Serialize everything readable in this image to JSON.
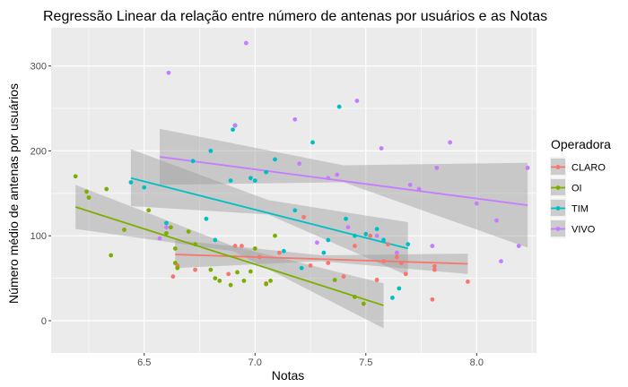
{
  "chart_data": {
    "type": "scatter",
    "title": "Regressão Linear da relação entre número de antenas por usuários e as Notas",
    "xlabel": "Notas",
    "ylabel": "Número médio de antenas por usuários",
    "xlim": [
      6.08,
      8.27
    ],
    "ylim": [
      -38,
      345
    ],
    "x_ticks": [
      6.5,
      7.0,
      7.5,
      8.0
    ],
    "x_tick_labels": [
      "6.5",
      "7.0",
      "7.5",
      "8.0"
    ],
    "y_ticks": [
      0,
      100,
      200,
      300
    ],
    "y_tick_labels": [
      "0",
      "100",
      "200",
      "300"
    ],
    "grid": true,
    "legend_position": "right",
    "legend_title": "Operadora",
    "series": [
      {
        "name": "CLARO",
        "color": "#F8766D",
        "points": [
          [
            6.63,
            52
          ],
          [
            6.65,
            65
          ],
          [
            6.73,
            60
          ],
          [
            6.88,
            55
          ],
          [
            6.91,
            88
          ],
          [
            6.94,
            88
          ],
          [
            7.02,
            75
          ],
          [
            7.05,
            44
          ],
          [
            7.11,
            80
          ],
          [
            7.22,
            122
          ],
          [
            7.25,
            65
          ],
          [
            7.33,
            68
          ],
          [
            7.4,
            52
          ],
          [
            7.45,
            88
          ],
          [
            7.52,
            100
          ],
          [
            7.55,
            48
          ],
          [
            7.58,
            70
          ],
          [
            7.6,
            90
          ],
          [
            7.64,
            75
          ],
          [
            7.66,
            68
          ],
          [
            7.68,
            55
          ],
          [
            7.8,
            25
          ],
          [
            7.81,
            60
          ],
          [
            7.81,
            64
          ],
          [
            7.96,
            46
          ]
        ],
        "fit": {
          "x": [
            6.64,
            7.96
          ],
          "y": [
            78,
            67
          ]
        },
        "band": {
          "lower": [
            [
              6.64,
              62
            ],
            [
              7.3,
              70
            ],
            [
              7.96,
              55
            ]
          ],
          "upper": [
            [
              6.64,
              95
            ],
            [
              7.3,
              77
            ],
            [
              7.96,
              79
            ]
          ]
        }
      },
      {
        "name": "OI",
        "color": "#7CAE00",
        "points": [
          [
            6.19,
            170
          ],
          [
            6.24,
            152
          ],
          [
            6.25,
            145
          ],
          [
            6.33,
            155
          ],
          [
            6.35,
            77
          ],
          [
            6.41,
            107
          ],
          [
            6.52,
            130
          ],
          [
            6.6,
            103
          ],
          [
            6.62,
            110
          ],
          [
            6.64,
            85
          ],
          [
            6.64,
            68
          ],
          [
            6.65,
            62
          ],
          [
            6.7,
            105
          ],
          [
            6.73,
            90
          ],
          [
            6.8,
            60
          ],
          [
            6.82,
            50
          ],
          [
            6.84,
            47
          ],
          [
            6.89,
            42
          ],
          [
            6.92,
            57
          ],
          [
            6.95,
            47
          ],
          [
            6.98,
            58
          ],
          [
            7.0,
            85
          ],
          [
            7.05,
            43
          ],
          [
            7.07,
            47
          ],
          [
            7.09,
            100
          ],
          [
            7.36,
            48
          ],
          [
            7.45,
            28
          ],
          [
            7.49,
            20
          ]
        ],
        "fit": {
          "x": [
            6.19,
            7.58
          ],
          "y": [
            134,
            18
          ]
        },
        "band": {
          "lower": [
            [
              6.19,
              108
            ],
            [
              6.9,
              82
            ],
            [
              7.58,
              -9
            ]
          ],
          "upper": [
            [
              6.19,
              160
            ],
            [
              6.9,
              88
            ],
            [
              7.58,
              44
            ]
          ]
        }
      },
      {
        "name": "TIM",
        "color": "#00BFC4",
        "points": [
          [
            6.44,
            163
          ],
          [
            6.5,
            157
          ],
          [
            6.6,
            115
          ],
          [
            6.72,
            188
          ],
          [
            6.78,
            120
          ],
          [
            6.8,
            200
          ],
          [
            6.82,
            95
          ],
          [
            6.89,
            165
          ],
          [
            6.9,
            225
          ],
          [
            6.91,
            230
          ],
          [
            6.98,
            168
          ],
          [
            7.0,
            165
          ],
          [
            7.05,
            175
          ],
          [
            7.09,
            190
          ],
          [
            7.13,
            82
          ],
          [
            7.18,
            130
          ],
          [
            7.21,
            62
          ],
          [
            7.26,
            210
          ],
          [
            7.31,
            80
          ],
          [
            7.33,
            95
          ],
          [
            7.38,
            252
          ],
          [
            7.41,
            120
          ],
          [
            7.45,
            100
          ],
          [
            7.5,
            102
          ],
          [
            7.55,
            108
          ],
          [
            7.58,
            95
          ],
          [
            7.62,
            27
          ],
          [
            7.65,
            38
          ],
          [
            7.69,
            90
          ]
        ],
        "fit": {
          "x": [
            6.44,
            7.69
          ],
          "y": [
            168,
            85
          ]
        },
        "band": {
          "lower": [
            [
              6.44,
              135
            ],
            [
              7.06,
              125
            ],
            [
              7.69,
              53
            ]
          ],
          "upper": [
            [
              6.44,
              202
            ],
            [
              7.06,
              142
            ],
            [
              7.69,
              116
            ]
          ]
        }
      },
      {
        "name": "VIVO",
        "color": "#C77CFF",
        "points": [
          [
            6.57,
            97
          ],
          [
            6.6,
            110
          ],
          [
            6.61,
            292
          ],
          [
            6.91,
            230
          ],
          [
            6.96,
            327
          ],
          [
            7.18,
            237
          ],
          [
            7.2,
            185
          ],
          [
            7.28,
            92
          ],
          [
            7.33,
            168
          ],
          [
            7.37,
            172
          ],
          [
            7.42,
            110
          ],
          [
            7.46,
            259
          ],
          [
            7.55,
            100
          ],
          [
            7.57,
            203
          ],
          [
            7.64,
            80
          ],
          [
            7.7,
            160
          ],
          [
            7.74,
            155
          ],
          [
            7.8,
            88
          ],
          [
            7.82,
            180
          ],
          [
            7.88,
            210
          ],
          [
            8.0,
            138
          ],
          [
            8.09,
            118
          ],
          [
            8.11,
            70
          ],
          [
            8.19,
            88
          ],
          [
            8.23,
            180
          ]
        ],
        "fit": {
          "x": [
            6.57,
            8.23
          ],
          "y": [
            193,
            136
          ]
        },
        "band": {
          "lower": [
            [
              6.57,
              160
            ],
            [
              7.4,
              163
            ],
            [
              8.23,
              86
            ]
          ],
          "upper": [
            [
              6.57,
              226
            ],
            [
              7.4,
              183
            ],
            [
              8.23,
              186
            ]
          ]
        }
      }
    ]
  }
}
